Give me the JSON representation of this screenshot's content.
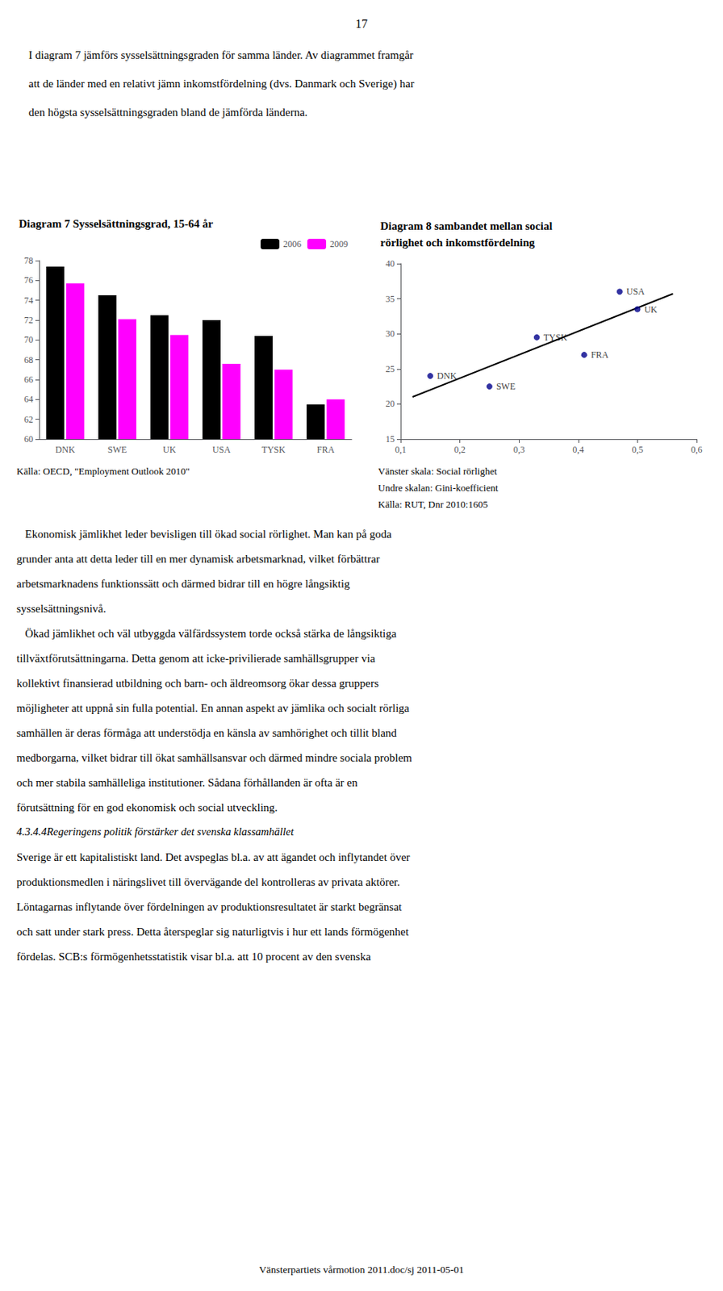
{
  "page_number": "17",
  "text_top": [
    "I diagram 7 jämförs sysselsättningsgraden för samma länder. Av diagrammet framgår",
    "att de länder med en relativt jämn inkomstfördelning (dvs. Danmark och Sverige) har",
    "den högsta sysselsättningsgraden bland de jämförda länderna."
  ],
  "chart_data": [
    {
      "type": "bar",
      "title": "Diagram 7 Sysselsättningsgrad, 15-64 år",
      "categories": [
        "DNK",
        "SWE",
        "UK",
        "USA",
        "TYSK",
        "FRA"
      ],
      "series": [
        {
          "name": "2006",
          "color": "#000000",
          "values": [
            77.4,
            74.5,
            72.5,
            72.0,
            70.4,
            63.5
          ]
        },
        {
          "name": "2009",
          "color": "#FF00FF",
          "values": [
            75.7,
            72.1,
            70.5,
            67.6,
            67.0,
            64.0
          ]
        }
      ],
      "ylim": [
        60,
        78
      ],
      "yticks": [
        60,
        62,
        64,
        66,
        68,
        70,
        72,
        74,
        76,
        78
      ],
      "legend": "upper right",
      "grid": false,
      "source": [
        "Källa: OECD, \"Employment Outlook 2010\""
      ]
    },
    {
      "type": "scatter",
      "title": "Diagram 8 sambandet mellan social\nrörlighet och inkomstfördelning",
      "series": [
        {
          "type": "line",
          "color": "#000000",
          "x": [
            0.12,
            0.56
          ],
          "values": [
            21.0072,
            35.7129
          ]
        },
        {
          "type": "scatter",
          "color": "#00008B",
          "x": [
            0.15,
            0.25,
            0.33,
            0.5,
            0.47,
            0.41
          ],
          "values": [
            24.0,
            22.5,
            29.5,
            33.5,
            36.0,
            27.0
          ],
          "labels": [
            "DNK",
            "SWE",
            "TYSK",
            "UK",
            "USA",
            "FRA"
          ]
        }
      ],
      "xlim": [
        0.1,
        0.6
      ],
      "ylim": [
        15,
        40
      ],
      "xticks": [
        {
          "value": 0.1,
          "label": "0,1"
        },
        {
          "value": 0.2,
          "label": "0,2"
        },
        {
          "value": 0.3,
          "label": "0,3"
        },
        {
          "value": 0.4,
          "label": "0,4"
        },
        {
          "value": 0.5,
          "label": "0,5"
        },
        {
          "value": 0.6,
          "label": "0,6"
        }
      ],
      "yticks": [
        15,
        20,
        25,
        30,
        35,
        40
      ],
      "grid": false,
      "source": [
        "Vänster skala: Social rörlighet",
        "Undre skalan: Gini-koefficient",
        "Källa: RUT, Dnr 2010:1605"
      ]
    }
  ],
  "text_bottom": [
    "   Ekonomisk jämlikhet leder bevisligen till ökad social rörlighet. Man kan på goda",
    "grunder anta att detta leder till en mer dynamisk arbetsmarknad, vilket förbättrar",
    "arbetsmarknadens funktionssätt och därmed bidrar till en högre långsiktig",
    "sysselsättningsnivå.",
    "   Ökad jämlikhet och väl utbyggda välfärdssystem torde också stärka de långsiktiga",
    "tillväxtförutsättningarna. Detta genom att icke-privilierade samhällsgrupper via",
    "kollektivt finansierad utbildning och barn- och äldreomsorg ökar dessa gruppers",
    "möjligheter att uppnå sin fulla potential. En annan aspekt av jämlika och socialt rörliga",
    "samhällen är deras förmåga att understödja en känsla av samhörighet och tillit bland",
    "medborgarna, vilket bidrar till ökat samhällsansvar och därmed mindre sociala problem",
    "och mer stabila samhälleliga institutioner. Sådana förhållanden är ofta är en",
    "förutsättning för en god ekonomisk och social utveckling."
  ],
  "heading": "4.3.4.4Regeringens politik förstärker det svenska klassamhället",
  "text_bottom_continued": [
    "Sverige är ett kapitalistiskt land. Det avspeglas bl.a. av att ägandet och inflytandet över",
    "produktionsmedlen i näringslivet till övervägande del kontrolleras av privata aktörer.",
    "Löntagarnas inflytande över fördelningen av produktionsresultatet är starkt begränsat",
    "och satt under stark press. Detta återspeglar sig naturligtvis i hur ett lands förmögenhet",
    "fördelas. SCB:s förmögenhetsstatistik visar bl.a. att 10 procent av den svenska"
  ],
  "footer": "Vänsterpartiets vårmotion 2011.doc/sj 2011-05-01"
}
